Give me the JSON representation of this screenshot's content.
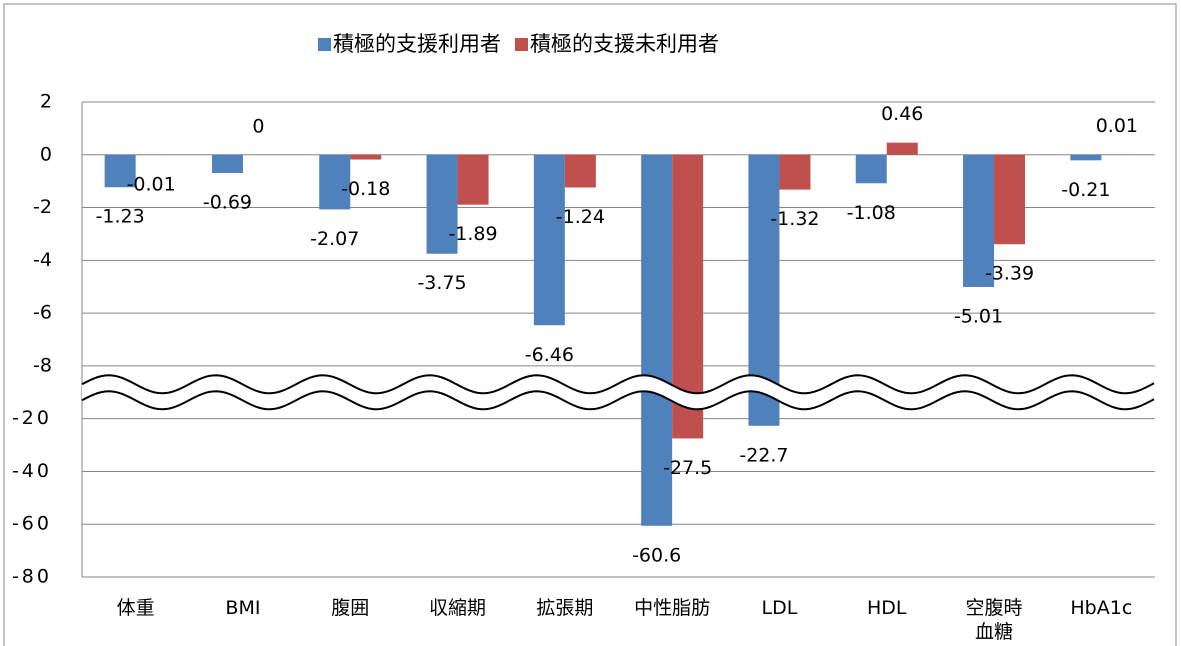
{
  "chart_data": {
    "type": "bar",
    "categories": [
      "体重",
      "BMI",
      "腹囲",
      "収縮期",
      "拡張期",
      "中性脂肪",
      "LDL",
      "HDL",
      "空腹時\n血糖",
      "HbA1c"
    ],
    "series": [
      {
        "name": "積極的支援利用者",
        "color": "#4f81bd",
        "values": [
          -1.23,
          -0.69,
          -2.07,
          -3.75,
          -6.46,
          -60.6,
          -22.7,
          -1.08,
          -5.01,
          -0.21
        ]
      },
      {
        "name": "積極的支援未利用者",
        "color": "#c0504d",
        "values": [
          -0.01,
          0,
          -0.18,
          -1.89,
          -1.24,
          -27.5,
          -1.32,
          0.46,
          -3.39,
          0.01
        ]
      }
    ],
    "ylim": [
      -80,
      2
    ],
    "yticks": [
      2,
      0,
      -2,
      -4,
      -6,
      -8,
      -20,
      -40,
      -60,
      -80
    ],
    "axis_break": true,
    "grid": true,
    "legend": "top"
  }
}
